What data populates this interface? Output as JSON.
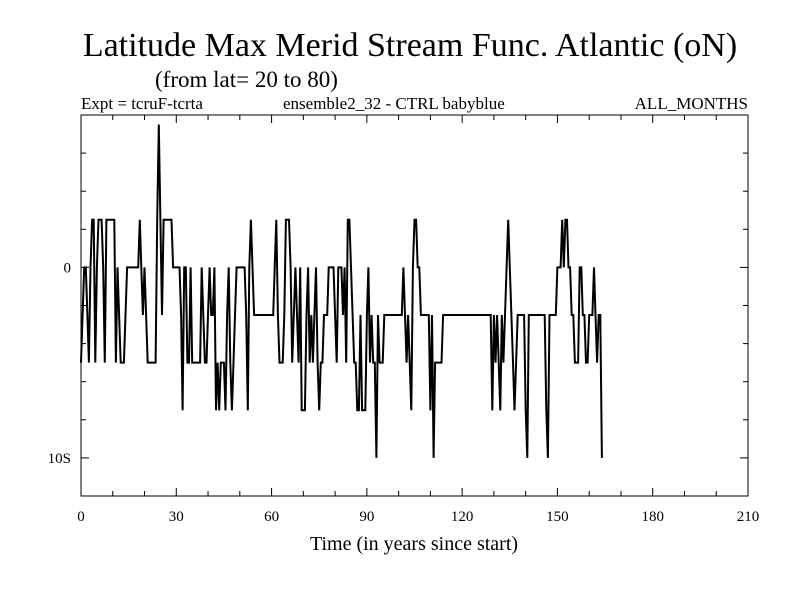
{
  "chart_data": {
    "type": "line",
    "title": "Latitude Max Merid Stream Func. Atlantic (oN)",
    "subtitle": "(from lat= 20 to 80)",
    "expt_label": "Expt = tcruF-tcrta",
    "ensemble_label": "ensemble2_32 - CTRL babyblue",
    "months_label": "ALL_MONTHS",
    "xlabel": "Time (in years since start)",
    "ylabel": "",
    "xlim": [
      0,
      210
    ],
    "ylim": [
      -12,
      8
    ],
    "x_ticks": [
      0,
      30,
      60,
      90,
      120,
      150,
      180,
      210
    ],
    "x_tick_labels": [
      "0",
      "30",
      "60",
      "90",
      "120",
      "150",
      "180",
      "210"
    ],
    "y_ticks": [
      0,
      -10
    ],
    "y_tick_labels": [
      "0",
      "10S"
    ],
    "grid": false,
    "series": [
      {
        "values": [
          -5,
          -2.5,
          0,
          0,
          -2.5,
          -5,
          0,
          2.5,
          2.5,
          -5,
          0,
          2.5,
          2.5,
          2.5,
          0,
          -5,
          2.5,
          2.5,
          2.5,
          2.5,
          2.5,
          2.5,
          -5,
          0,
          -2.5,
          -5,
          -5,
          -5,
          -2.5,
          0,
          0,
          0,
          0,
          0,
          0,
          0,
          0,
          2.5,
          0,
          -2.5,
          0,
          -2.5,
          -5,
          -5,
          -5,
          -5,
          -5,
          -5,
          2.5,
          7.5,
          2.5,
          -2.5,
          2.5,
          2.5,
          2.5,
          2.5,
          2.5,
          2.5,
          0,
          0,
          0,
          0,
          0,
          -2.5,
          -7.5,
          0,
          0,
          -5,
          -5,
          0,
          -5,
          -5,
          -5,
          -5,
          -5,
          -5,
          0,
          -2.5,
          -5,
          -5,
          -2.5,
          0,
          -2.5,
          -2.5,
          0,
          -7.5,
          -5,
          -7.5,
          -5,
          -5,
          -5,
          -7.5,
          -2.5,
          0,
          -5,
          -7.5,
          -5,
          -2.5,
          0,
          0,
          0,
          0,
          0,
          0,
          -2.5,
          -7.5,
          0,
          2.5,
          0,
          -2.5,
          -2.5,
          -2.5,
          -2.5,
          -2.5,
          -2.5,
          -2.5,
          -2.5,
          -2.5,
          -2.5,
          -2.5,
          -2.5,
          -2.5,
          0,
          2.5,
          -2.5,
          -5,
          -5,
          -5,
          -2.5,
          2.5,
          2.5,
          2.5,
          0,
          -5,
          -2.5,
          0,
          -2.5,
          -5,
          0,
          -7.5,
          -7.5,
          -7.5,
          -2.5,
          0,
          -5,
          -2.5,
          -5,
          -2.5,
          0,
          -5,
          -7.5,
          -5,
          -5,
          -2.5,
          -2.5,
          -2.5,
          0,
          0,
          0,
          0,
          -2.5,
          -5,
          0,
          0,
          0,
          -2.5,
          0,
          -5,
          2.5,
          2.5,
          0,
          -2.5,
          -5,
          -5,
          -7.5,
          -7.5,
          -2.5,
          -7.5,
          -7.5,
          -7.5,
          -2.5,
          0,
          -5,
          -2.5,
          -5,
          -5,
          -10,
          -2.5,
          -5,
          -5,
          -5,
          -2.5,
          -2.5,
          -2.5,
          -2.5,
          -2.5,
          -2.5,
          -2.5,
          -2.5,
          -2.5,
          -2.5,
          -2.5,
          -2.5,
          0,
          -2.5,
          -5,
          -2.5,
          -5,
          -7.5,
          0,
          2.5,
          2.5,
          0,
          0,
          -2.5,
          -2.5,
          -2.5,
          -2.5,
          -2.5,
          -2.5,
          -7.5,
          -2.5,
          -10,
          -5,
          -5,
          -5,
          -5,
          -5,
          -2.5,
          -2.5,
          -2.5,
          -2.5,
          -2.5,
          -2.5,
          -2.5,
          -2.5,
          -2.5,
          -2.5,
          -2.5,
          -2.5,
          -2.5,
          -2.5,
          -2.5,
          -2.5,
          -2.5,
          -2.5,
          -2.5,
          -2.5,
          -2.5,
          -2.5,
          -2.5,
          -2.5,
          -2.5,
          -2.5,
          -2.5,
          -2.5,
          -2.5,
          -2.5,
          -2.5,
          -7.5,
          -2.5,
          -5,
          -2.5,
          -5,
          -7.5,
          -2.5,
          -5,
          -2.5,
          0,
          2.5,
          0,
          -2.5,
          -5,
          -7.5,
          -5,
          -2.5,
          -2.5,
          -2.5,
          -2.5,
          -2.5,
          -7.5,
          -10,
          -2.5,
          -2.5,
          -2.5,
          -2.5,
          -2.5,
          -2.5,
          -2.5,
          -2.5,
          -2.5,
          -2.5,
          -2.5,
          -7.5,
          -10,
          -2.5,
          -2.5,
          -2.5,
          -2.5,
          -2.5,
          0,
          0,
          0,
          2.5,
          0,
          2.5,
          2.5,
          0,
          0,
          -2.5,
          -2.5,
          -5,
          -5,
          -5,
          0,
          0,
          -2.5,
          -2.5,
          -5,
          -5,
          -2.5,
          -2.5,
          -2.5,
          0,
          -2.5,
          -5,
          -2.5,
          -2.5,
          -10
        ]
      }
    ],
    "x_start": 0,
    "x_step": 0.5
  }
}
